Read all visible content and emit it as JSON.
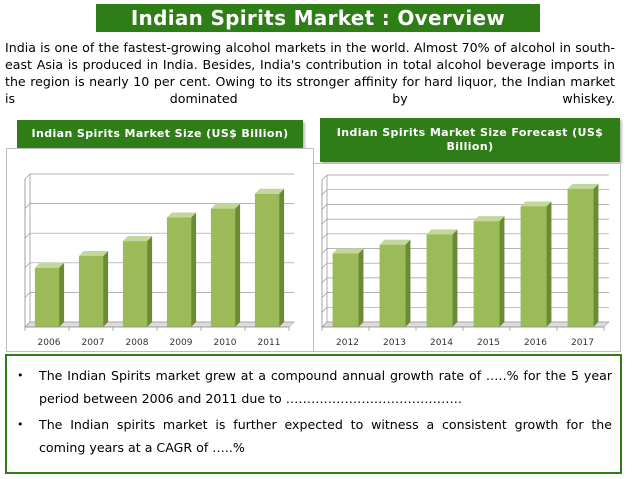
{
  "title": "Indian Spirits Market : Overview",
  "intro": "India is one of the fastest-growing alcohol markets in the world. Almost 70% of alcohol in south-east Asia is produced in India. Besides, India's contribution in total alcohol beverage imports in the region is nearly 10 per cent. Owing to its stronger affinity for hard liquor, the Indian market is dominated by whiskey.",
  "bullets": [
    "The Indian Spirits market grew at a compound annual growth rate of .….% for the 5 year period between 2006 and 2011 due to ……………………………………",
    "The Indian spirits market is further expected to witness a consistent growth for the coming years at a CAGR of …..%"
  ],
  "colors": {
    "accent": "#2e7d17",
    "bar": "#9bbb59",
    "bar_side": "#6b8a34",
    "bar_top": "#c3d69b"
  },
  "chart_data": [
    {
      "type": "bar",
      "title": "Indian Spirits Market Size (US$ Billion)",
      "categories": [
        "2006",
        "2007",
        "2008",
        "2009",
        "2010",
        "2011"
      ],
      "values": [
        2.0,
        2.4,
        2.9,
        3.7,
        4.0,
        4.5
      ],
      "ylim": [
        0,
        5
      ],
      "ytick_step": 1,
      "grid": true,
      "legend": "none",
      "xlabel": "",
      "ylabel": ""
    },
    {
      "type": "bar",
      "title": "Indian Spirits Market Size Forecast (US$ Billion)",
      "categories": [
        "2012",
        "2013",
        "2014",
        "2015",
        "2016",
        "2017"
      ],
      "values": [
        5.0,
        5.6,
        6.3,
        7.2,
        8.2,
        9.4
      ],
      "ylim": [
        0,
        10
      ],
      "ytick_step": 1,
      "grid": true,
      "legend": "none",
      "xlabel": "",
      "ylabel": ""
    }
  ]
}
